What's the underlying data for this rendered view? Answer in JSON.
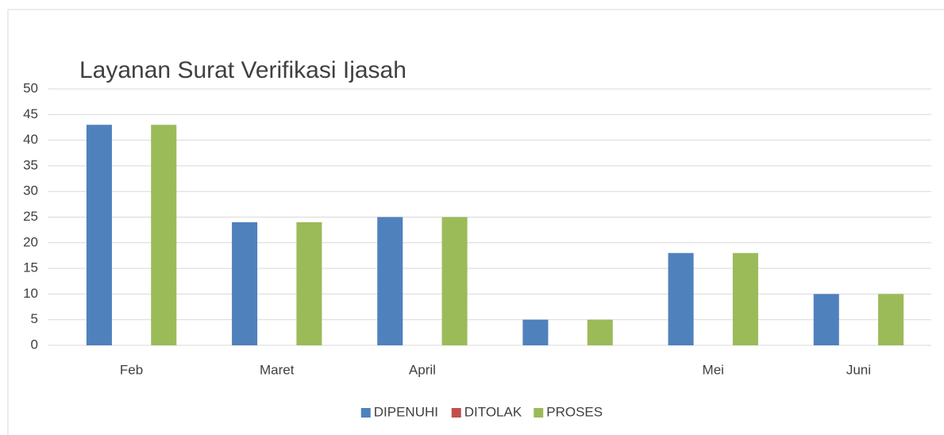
{
  "chart_data": {
    "type": "bar",
    "title": "Layanan Surat Verifikasi Ijasah",
    "categories": [
      "Feb",
      "Maret",
      "April",
      null,
      "Mei",
      "Juni"
    ],
    "series": [
      {
        "name": "DIPENUHI",
        "color": "#4f81bd",
        "values": [
          43,
          24,
          25,
          5,
          18,
          10
        ]
      },
      {
        "name": "DITOLAK",
        "color": "#c0504d",
        "values": [
          0,
          0,
          0,
          0,
          0,
          0
        ]
      },
      {
        "name": "PROSES",
        "color": "#9bbb59",
        "values": [
          43,
          24,
          25,
          5,
          18,
          10
        ]
      }
    ],
    "ylim": [
      0,
      50
    ],
    "yticks": [
      0,
      5,
      10,
      15,
      20,
      25,
      30,
      35,
      40,
      45,
      50
    ],
    "grid": true,
    "legend": "bottom"
  }
}
